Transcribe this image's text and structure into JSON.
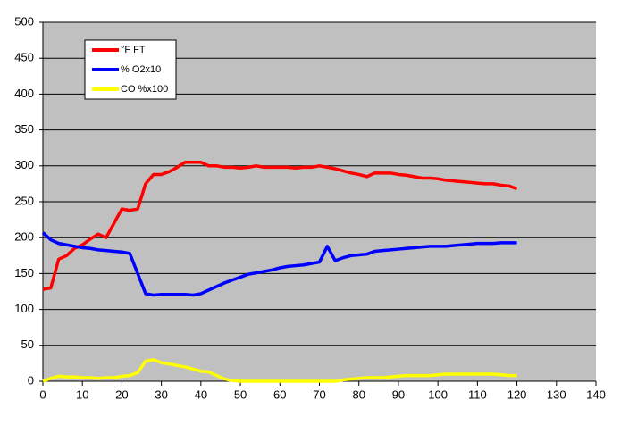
{
  "chart_data": {
    "type": "line",
    "x": [
      0,
      2,
      4,
      6,
      8,
      10,
      12,
      14,
      16,
      18,
      20,
      22,
      24,
      26,
      28,
      30,
      32,
      34,
      36,
      38,
      40,
      42,
      44,
      46,
      48,
      50,
      52,
      54,
      56,
      58,
      60,
      62,
      64,
      66,
      68,
      70,
      72,
      74,
      76,
      78,
      80,
      82,
      84,
      86,
      88,
      90,
      92,
      94,
      96,
      98,
      100,
      102,
      104,
      106,
      108,
      110,
      112,
      114,
      116,
      118,
      120
    ],
    "series": [
      {
        "name": "°F FT",
        "color": "#ff0000",
        "values": [
          128,
          130,
          170,
          175,
          185,
          190,
          198,
          205,
          200,
          220,
          240,
          238,
          240,
          275,
          288,
          288,
          292,
          298,
          305,
          305,
          305,
          300,
          300,
          298,
          298,
          297,
          298,
          300,
          298,
          298,
          298,
          298,
          297,
          298,
          298,
          300,
          298,
          296,
          293,
          290,
          288,
          285,
          290,
          290,
          290,
          288,
          287,
          285,
          283,
          283,
          282,
          280,
          279,
          278,
          277,
          276,
          275,
          275,
          273,
          272,
          268
        ]
      },
      {
        "name": "% O2x10",
        "color": "#0000ff",
        "values": [
          207,
          197,
          192,
          190,
          188,
          186,
          185,
          183,
          182,
          181,
          180,
          178,
          150,
          122,
          120,
          121,
          121,
          121,
          121,
          120,
          122,
          127,
          132,
          137,
          141,
          145,
          149,
          151,
          153,
          155,
          158,
          160,
          161,
          162,
          164,
          166,
          188,
          168,
          172,
          175,
          176,
          177,
          181,
          182,
          183,
          184,
          185,
          186,
          187,
          188,
          188,
          188,
          189,
          190,
          191,
          192,
          192,
          192,
          193,
          193,
          193
        ]
      },
      {
        "name": "CO %x100",
        "color": "#ffff00",
        "values": [
          0,
          4,
          7,
          6,
          6,
          5,
          5,
          4,
          5,
          5,
          7,
          8,
          12,
          28,
          30,
          26,
          24,
          22,
          20,
          17,
          14,
          13,
          8,
          3,
          1,
          0,
          0,
          0,
          0,
          0,
          0,
          0,
          0,
          0,
          0,
          0,
          0,
          0,
          2,
          3,
          4,
          5,
          5,
          5,
          6,
          7,
          8,
          8,
          8,
          8,
          9,
          10,
          10,
          10,
          10,
          10,
          10,
          10,
          9,
          8,
          8
        ]
      }
    ],
    "xlim": [
      0,
      140
    ],
    "xticks": [
      0,
      10,
      20,
      30,
      40,
      50,
      60,
      70,
      80,
      90,
      100,
      110,
      120,
      130,
      140
    ],
    "ylim": [
      0,
      500
    ],
    "yticks": [
      0,
      50,
      100,
      150,
      200,
      250,
      300,
      350,
      400,
      450,
      500
    ],
    "grid": true,
    "legend": "top-left",
    "background": "#c0c0c0"
  }
}
